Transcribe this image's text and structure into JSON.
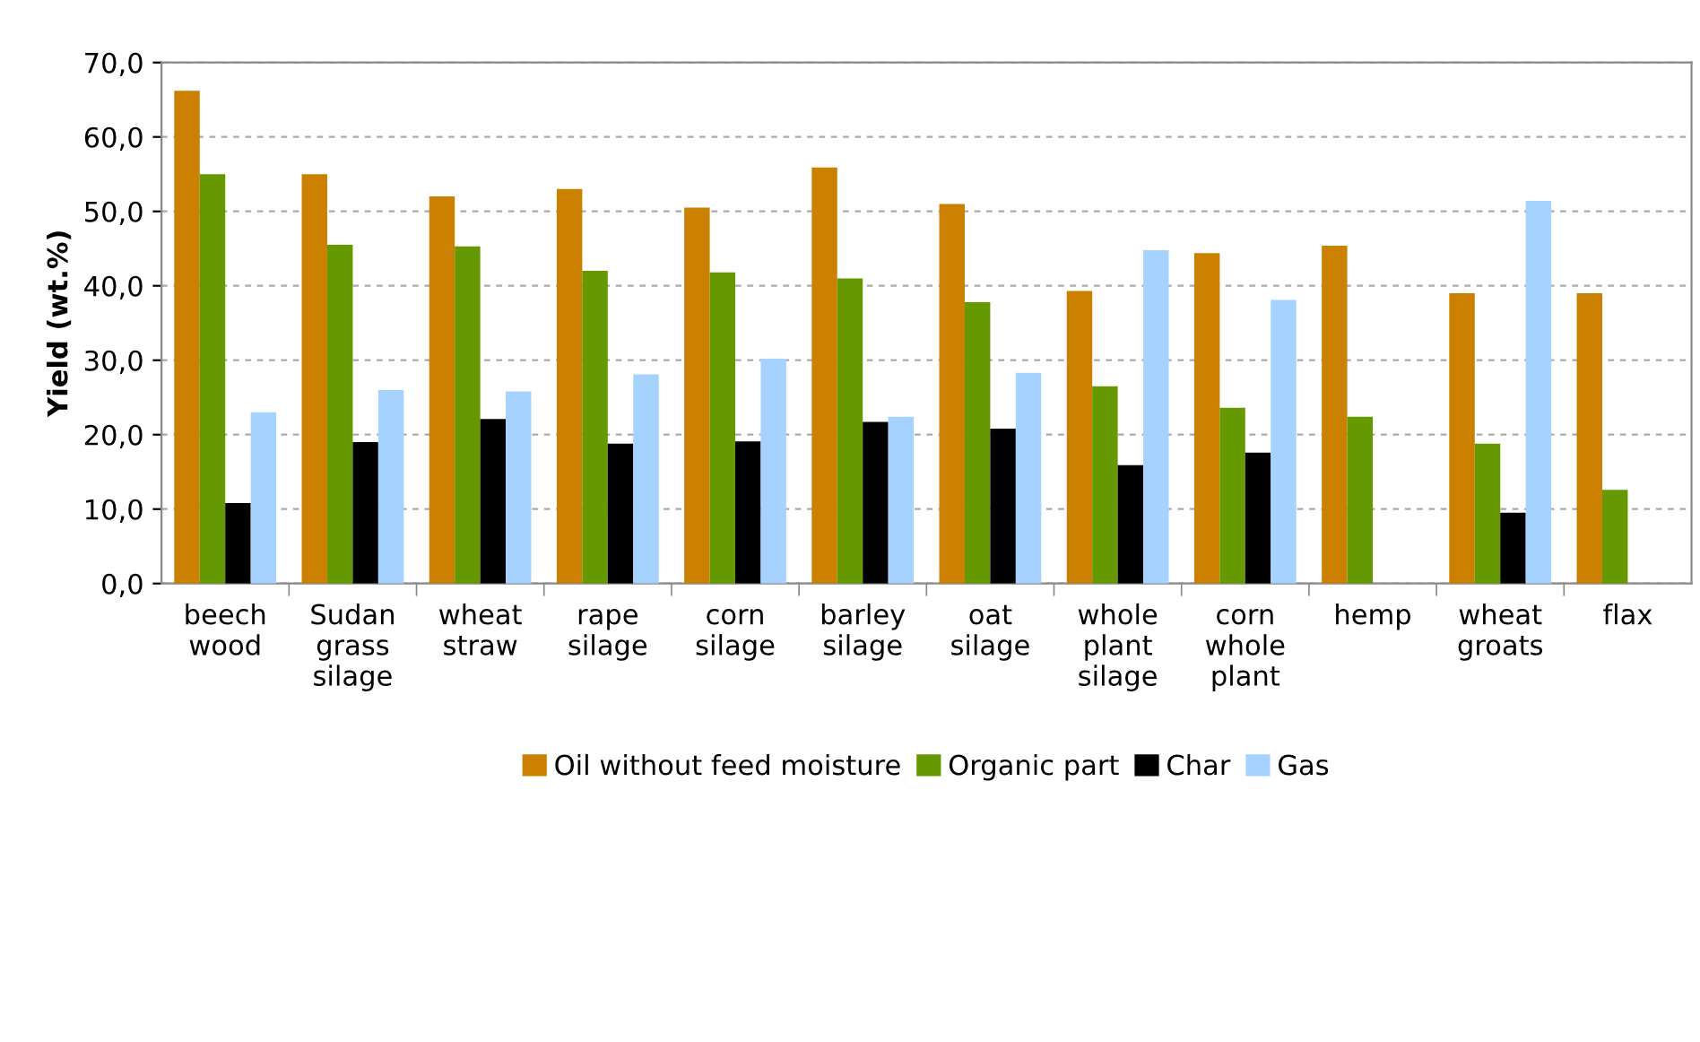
{
  "chart_data": {
    "type": "bar",
    "ylabel": "Yield (wt.%)",
    "categories": [
      "beech\nwood",
      "Sudan\ngrass\nsilage",
      "wheat\nstraw",
      "rape\nsilage",
      "corn\nsilage",
      "barley\nsilage",
      "oat\nsilage",
      "whole\nplant\nsilage",
      "corn\nwhole\nplant",
      "hemp",
      "wheat\ngroats",
      "flax"
    ],
    "series": [
      {
        "name": "Oil without feed moisture",
        "color": "#cc8000",
        "values": [
          66.2,
          55.0,
          52.0,
          53.0,
          50.5,
          55.9,
          51.0,
          39.3,
          44.4,
          45.4,
          39.0,
          39.0
        ]
      },
      {
        "name": "Organic part",
        "color": "#669900",
        "values": [
          55.0,
          45.5,
          45.3,
          42.0,
          41.8,
          41.0,
          37.8,
          26.5,
          23.6,
          22.4,
          18.8,
          12.6
        ]
      },
      {
        "name": "Char",
        "color": "#000000",
        "values": [
          10.8,
          19.0,
          22.1,
          18.8,
          19.1,
          21.7,
          20.8,
          15.9,
          17.6,
          null,
          9.5,
          null
        ]
      },
      {
        "name": "Gas",
        "color": "#a6d2ff",
        "values": [
          23.0,
          26.0,
          25.8,
          28.1,
          30.2,
          22.4,
          28.3,
          44.8,
          38.1,
          null,
          51.4,
          null
        ]
      }
    ],
    "ylim": [
      0,
      70
    ],
    "yticks": [
      {
        "value": 0,
        "label": "0,0"
      },
      {
        "value": 10,
        "label": "10,0"
      },
      {
        "value": 20,
        "label": "20,0"
      },
      {
        "value": 30,
        "label": "30,0"
      },
      {
        "value": 40,
        "label": "40,0"
      },
      {
        "value": 50,
        "label": "50,0"
      },
      {
        "value": 60,
        "label": "60,0"
      },
      {
        "value": 70,
        "label": "70,0"
      }
    ],
    "grid": "y",
    "legend": "bottom"
  }
}
